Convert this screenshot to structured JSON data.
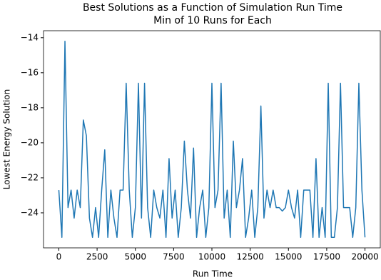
{
  "chart_data": {
    "type": "line",
    "title": "Best Solutions as a Function of Simulation Run Time",
    "subtitle": "Min of 10 Runs for Each",
    "x_label": "Run Time",
    "y_label": "Lowest Energy Solution",
    "x": [
      0,
      200,
      400,
      600,
      800,
      1000,
      1200,
      1400,
      1600,
      1800,
      2000,
      2200,
      2400,
      2600,
      2800,
      3000,
      3200,
      3400,
      3600,
      3800,
      4000,
      4200,
      4400,
      4600,
      4800,
      5000,
      5200,
      5400,
      5600,
      5800,
      6000,
      6200,
      6400,
      6600,
      6800,
      7000,
      7200,
      7400,
      7600,
      7800,
      8000,
      8200,
      8400,
      8600,
      8800,
      9000,
      9200,
      9400,
      9600,
      9800,
      10000,
      10200,
      10400,
      10600,
      10800,
      11000,
      11200,
      11400,
      11600,
      11800,
      12000,
      12200,
      12400,
      12600,
      12800,
      13000,
      13200,
      13400,
      13600,
      13800,
      14000,
      14200,
      14400,
      14600,
      14800,
      15000,
      15200,
      15400,
      15600,
      15800,
      16000,
      16200,
      16400,
      16600,
      16800,
      17000,
      17200,
      17400,
      17600,
      17800,
      18000,
      18200,
      18400,
      18600,
      18800,
      19000,
      19200,
      19400,
      19600,
      19800,
      20000
    ],
    "series": [
      {
        "name": "Lowest Energy Solution",
        "color": "#1f77b4",
        "values": [
          -22.7,
          -25.4,
          -14.2,
          -23.7,
          -22.7,
          -24.3,
          -22.7,
          -23.7,
          -18.7,
          -19.6,
          -24.3,
          -25.4,
          -23.7,
          -25.4,
          -22.7,
          -20.4,
          -25.4,
          -22.7,
          -24.3,
          -25.4,
          -22.7,
          -22.7,
          -16.6,
          -22.7,
          -25.4,
          -23.7,
          -16.6,
          -24.3,
          -16.6,
          -23.7,
          -25.4,
          -22.7,
          -23.7,
          -24.3,
          -22.7,
          -25.4,
          -20.9,
          -24.3,
          -22.7,
          -25.4,
          -23.7,
          -19.9,
          -22.7,
          -24.3,
          -20.3,
          -25.4,
          -23.7,
          -22.7,
          -25.4,
          -23.7,
          -16.6,
          -23.7,
          -22.7,
          -16.6,
          -24.3,
          -22.7,
          -25.4,
          -19.9,
          -23.7,
          -22.7,
          -20.9,
          -25.4,
          -24.3,
          -22.7,
          -25.4,
          -23.7,
          -17.9,
          -24.3,
          -22.7,
          -23.7,
          -22.7,
          -23.7,
          -23.7,
          -23.9,
          -23.7,
          -22.7,
          -23.7,
          -24.3,
          -22.7,
          -25.4,
          -22.7,
          -22.7,
          -22.7,
          -25.4,
          -20.9,
          -25.4,
          -23.7,
          -25.4,
          -16.6,
          -25.4,
          -25.4,
          -23.7,
          -16.6,
          -23.7,
          -23.7,
          -23.7,
          -25.4,
          -23.7,
          -16.6,
          -22.7,
          -25.4
        ]
      }
    ],
    "xlim": [
      -1000,
      21000
    ],
    "ylim": [
      -26.0,
      -13.6
    ],
    "xticks": [
      0,
      2500,
      5000,
      7500,
      10000,
      12500,
      15000,
      17500,
      20000
    ],
    "yticks": [
      {
        "value": -24,
        "label": "−24"
      },
      {
        "value": -22,
        "label": "−22"
      },
      {
        "value": -20,
        "label": "−20"
      },
      {
        "value": -18,
        "label": "−18"
      },
      {
        "value": -16,
        "label": "−16"
      },
      {
        "value": -14,
        "label": "−14"
      }
    ],
    "grid": false
  }
}
